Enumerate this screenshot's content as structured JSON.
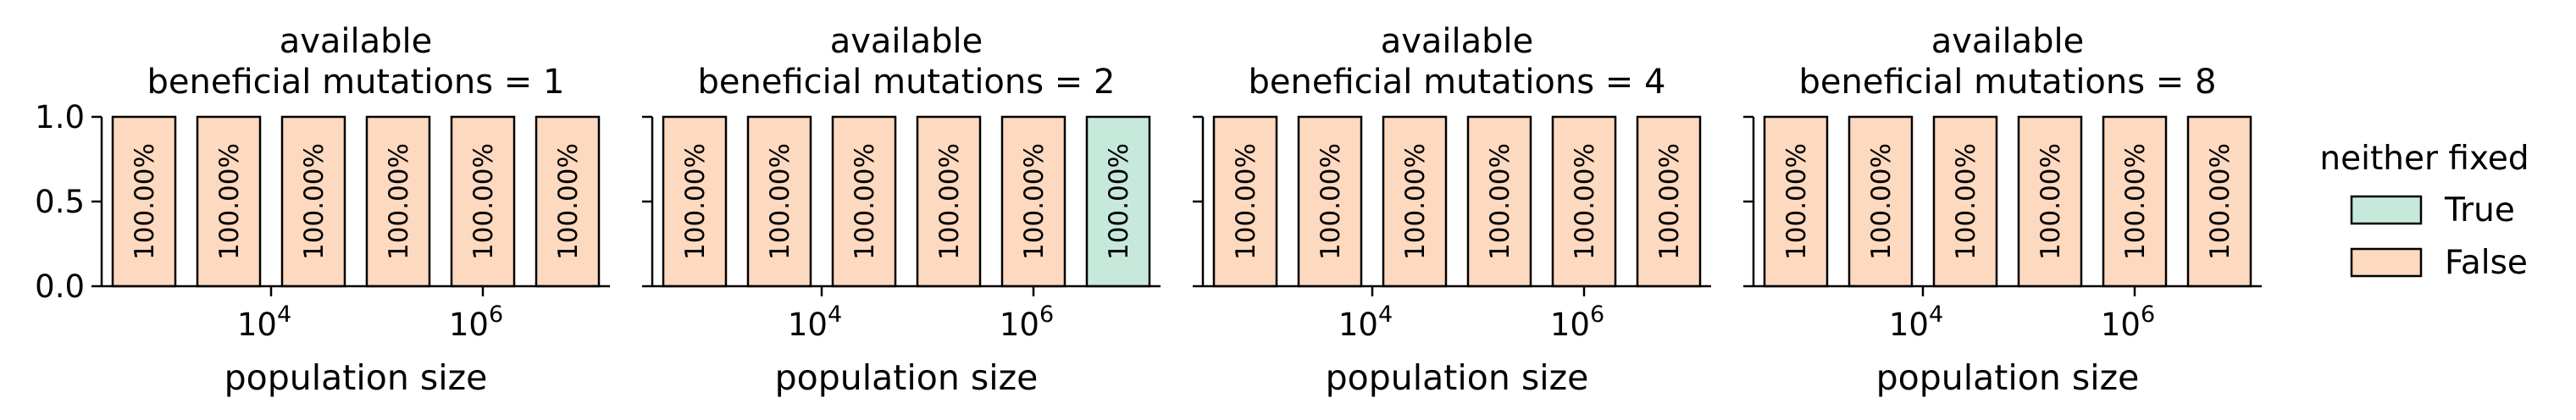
{
  "chart_data": {
    "type": "bar",
    "categories": [
      "1000",
      "3000",
      "10000",
      "30000",
      "100000",
      "1000000"
    ],
    "panels": [
      {
        "title_line1": "available",
        "title_line2": "beneficial mutations = 1",
        "xlabel": "population size",
        "values": [
          1.0,
          1.0,
          1.0,
          1.0,
          1.0,
          1.0
        ],
        "labels": [
          "100.00%",
          "100.00%",
          "100.00%",
          "100.00%",
          "100.00%",
          "100.00%"
        ],
        "neither_fixed": [
          "False",
          "False",
          "False",
          "False",
          "False",
          "False"
        ]
      },
      {
        "title_line1": "available",
        "title_line2": "beneficial mutations = 2",
        "xlabel": "population size",
        "values": [
          1.0,
          1.0,
          1.0,
          1.0,
          1.0,
          1.0
        ],
        "labels": [
          "100.00%",
          "100.00%",
          "100.00%",
          "100.00%",
          "100.00%",
          "100.00%"
        ],
        "neither_fixed": [
          "False",
          "False",
          "False",
          "False",
          "False",
          "True"
        ]
      },
      {
        "title_line1": "available",
        "title_line2": "beneficial mutations = 4",
        "xlabel": "population size",
        "values": [
          1.0,
          1.0,
          1.0,
          1.0,
          1.0,
          1.0
        ],
        "labels": [
          "100.00%",
          "100.00%",
          "100.00%",
          "100.00%",
          "100.00%",
          "100.00%"
        ],
        "neither_fixed": [
          "False",
          "False",
          "False",
          "False",
          "False",
          "False"
        ]
      },
      {
        "title_line1": "available",
        "title_line2": "beneficial mutations = 8",
        "xlabel": "population size",
        "values": [
          1.0,
          1.0,
          1.0,
          1.0,
          1.0,
          1.0
        ],
        "labels": [
          "100.00%",
          "100.00%",
          "100.00%",
          "100.00%",
          "100.00%",
          "100.00%"
        ],
        "neither_fixed": [
          "False",
          "False",
          "False",
          "False",
          "False",
          "False"
        ]
      }
    ],
    "ylim": [
      0,
      1.0
    ],
    "yticks": [
      "0.0",
      "0.5",
      "1.0"
    ],
    "yticks_values": [
      0,
      0.5,
      1.0
    ],
    "xticks": [
      {
        "base": "10",
        "exp": "4",
        "position_index": 1.5
      },
      {
        "base": "10",
        "exp": "6",
        "position_index": 4
      }
    ],
    "legend": {
      "title": "neither fixed",
      "placement": "right",
      "entries": [
        {
          "label": "True",
          "color": "#c6e9dc"
        },
        {
          "label": "False",
          "color": "#fdd9c0"
        }
      ]
    },
    "grid": false
  }
}
